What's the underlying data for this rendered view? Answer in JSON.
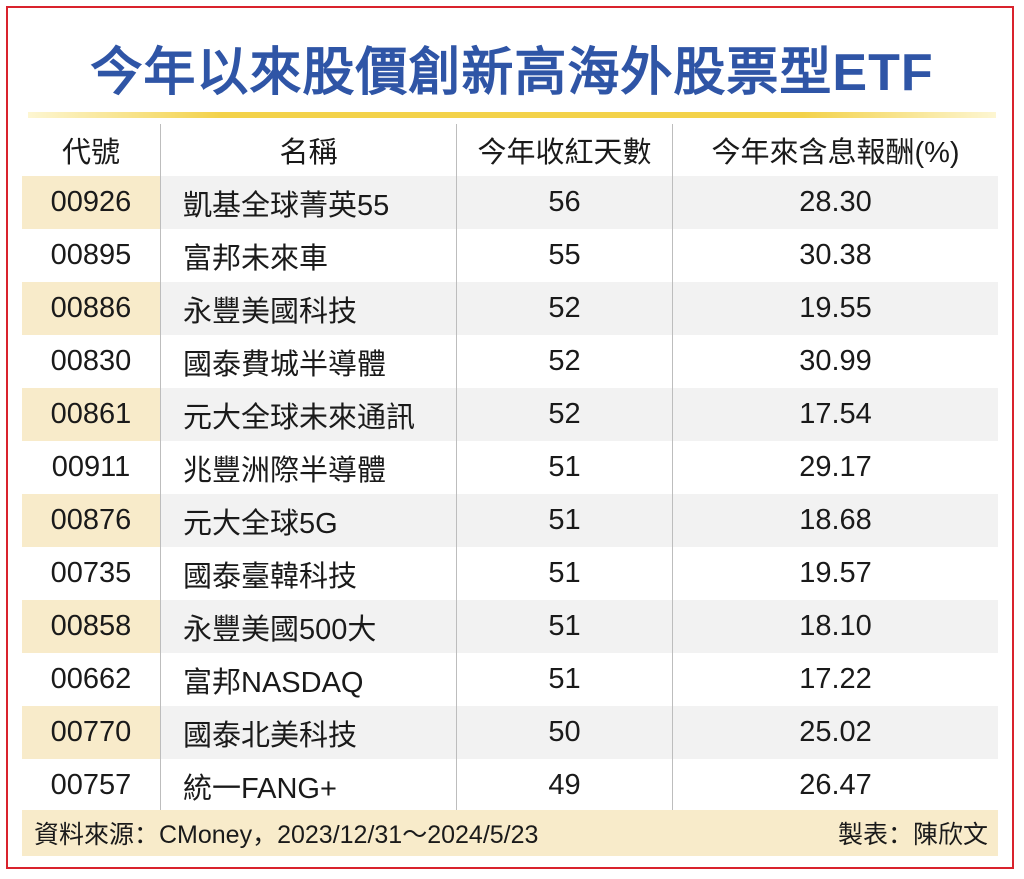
{
  "title": "今年以來股價創新高海外股票型ETF",
  "chart_data": {
    "type": "table",
    "columns": [
      "代號",
      "名稱",
      "今年收紅天數",
      "今年來含息報酬(%)"
    ],
    "rows": [
      [
        "00926",
        "凱基全球菁英55",
        "56",
        "28.30"
      ],
      [
        "00895",
        "富邦未來車",
        "55",
        "30.38"
      ],
      [
        "00886",
        "永豐美國科技",
        "52",
        "19.55"
      ],
      [
        "00830",
        "國泰費城半導體",
        "52",
        "30.99"
      ],
      [
        "00861",
        "元大全球未來通訊",
        "52",
        "17.54"
      ],
      [
        "00911",
        "兆豐洲際半導體",
        "51",
        "29.17"
      ],
      [
        "00876",
        "元大全球5G",
        "51",
        "18.68"
      ],
      [
        "00735",
        "國泰臺韓科技",
        "51",
        "19.57"
      ],
      [
        "00858",
        "永豐美國500大",
        "51",
        "18.10"
      ],
      [
        "00662",
        "富邦NASDAQ",
        "51",
        "17.22"
      ],
      [
        "00770",
        "國泰北美科技",
        "50",
        "25.02"
      ],
      [
        "00757",
        "統一FANG+",
        "49",
        "26.47"
      ]
    ]
  },
  "footer": {
    "source": "資料來源：CMoney，2023/12/31～2024/5/23",
    "credit": "製表：陳欣文"
  },
  "colors": {
    "title": "#2f55a6",
    "border": "#d9232d",
    "code_highlight": "#f8ebca",
    "row_shade": "#f2f2f2",
    "rule": "#f3d24a"
  }
}
